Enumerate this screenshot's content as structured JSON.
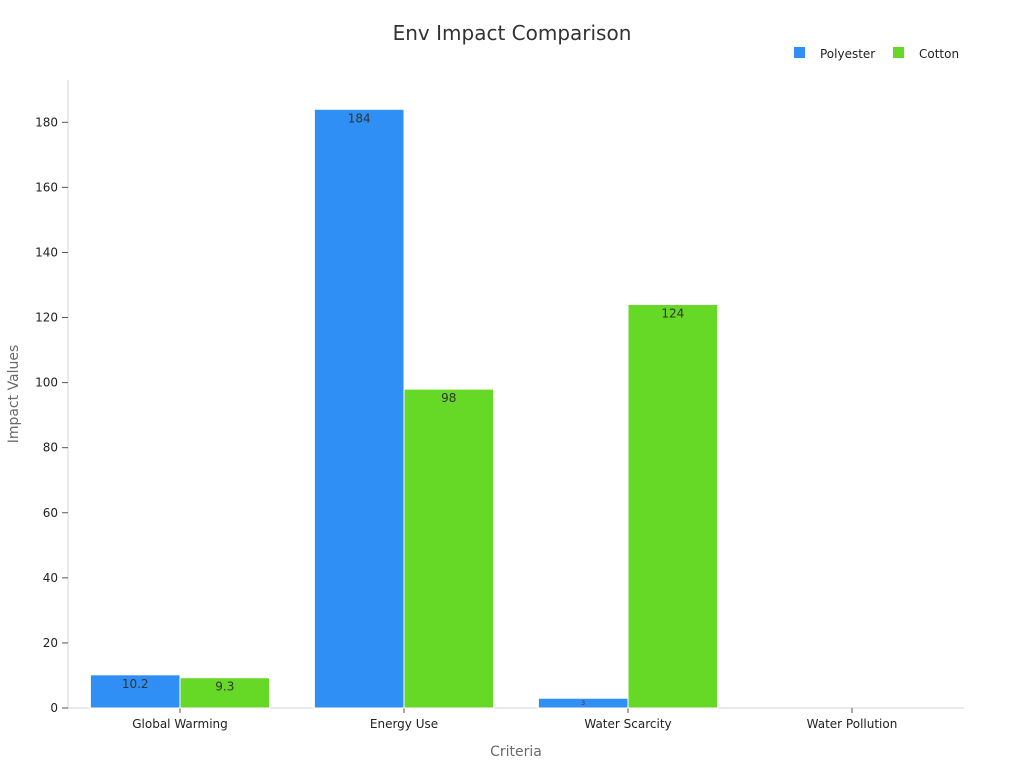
{
  "chart_data": {
    "type": "bar",
    "title": "Env Impact Comparison",
    "xlabel": "Criteria",
    "ylabel": "Impact Values",
    "categories": [
      "Global Warming",
      "Energy Use",
      "Water Scarcity",
      "Water Pollution"
    ],
    "series": [
      {
        "name": "Polyester",
        "color": "#2f8ff5",
        "values": [
          10.2,
          184,
          3,
          null
        ],
        "labels": [
          "10.2",
          "184",
          "3",
          ""
        ]
      },
      {
        "name": "Cotton",
        "color": "#66d927",
        "values": [
          9.3,
          98,
          124,
          null
        ],
        "labels": [
          "9.3",
          "98",
          "124",
          ""
        ]
      }
    ],
    "ylim": [
      0,
      193
    ],
    "yticks": [
      0,
      20,
      40,
      60,
      80,
      100,
      120,
      140,
      160,
      180
    ],
    "legend_position": "top-right",
    "grid": false
  }
}
